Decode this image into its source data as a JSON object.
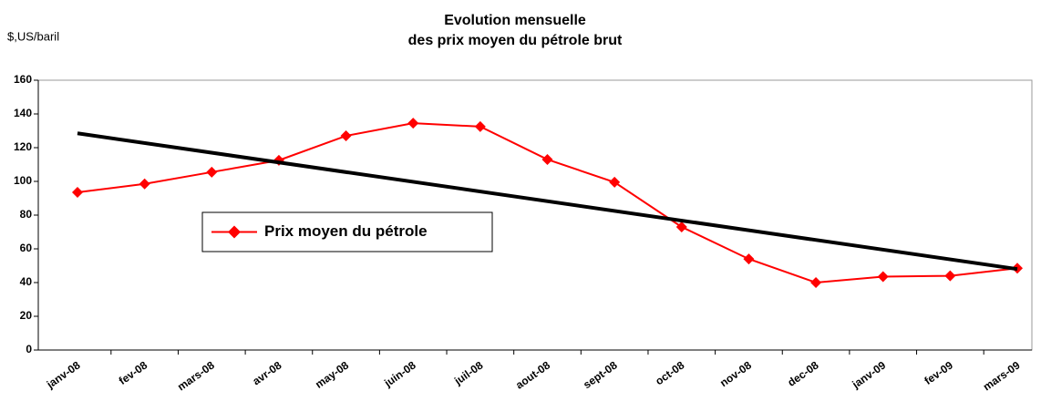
{
  "chart_data": {
    "type": "line",
    "title": [
      "Evolution mensuelle",
      "des prix moyen du pétrole brut"
    ],
    "y_label": "$,US/baril",
    "categories": [
      "janv-08",
      "fev-08",
      "mars-08",
      "avr-08",
      "may-08",
      "juin-08",
      "juil-08",
      "aout-08",
      "sept-08",
      "oct-08",
      "nov-08",
      "dec-08",
      "janv-09",
      "fev-09",
      "mars-09"
    ],
    "series": [
      {
        "name": "Prix moyen du pétrole",
        "color": "#ff0000",
        "values": [
          93.5,
          98.5,
          105.5,
          112.5,
          127,
          134.5,
          132.5,
          113,
          99.5,
          73,
          54,
          40,
          43.5,
          44,
          48.5
        ]
      }
    ],
    "trend": {
      "start": 128.5,
      "end": 48,
      "color": "#000000"
    },
    "ylim": [
      0,
      160
    ],
    "yticks": [
      0,
      20,
      40,
      60,
      80,
      100,
      120,
      140,
      160
    ],
    "grid": false,
    "legend": "center-left"
  }
}
